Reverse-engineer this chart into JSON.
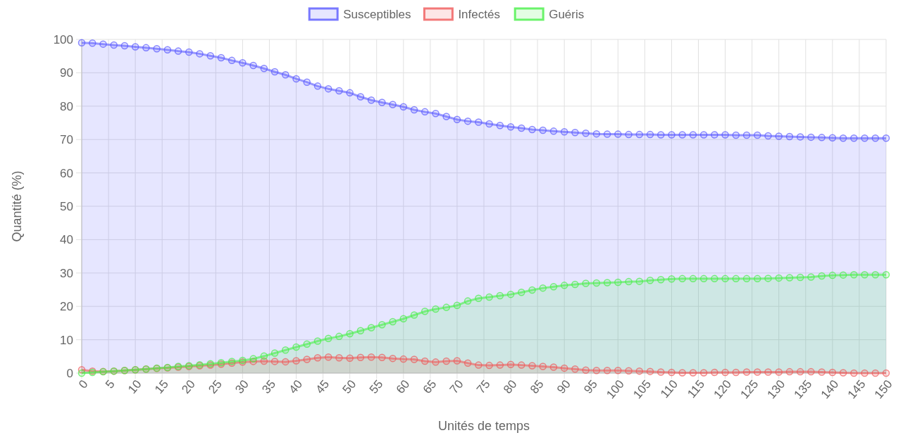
{
  "chart_data": {
    "type": "area",
    "xlabel": "Unités de temps",
    "ylabel": "Quantité (%)",
    "x": [
      0,
      2,
      4,
      6,
      8,
      10,
      12,
      14,
      16,
      18,
      20,
      22,
      24,
      26,
      28,
      30,
      32,
      34,
      36,
      38,
      40,
      42,
      44,
      46,
      48,
      50,
      52,
      54,
      56,
      58,
      60,
      62,
      64,
      66,
      68,
      70,
      72,
      74,
      76,
      78,
      80,
      82,
      84,
      86,
      88,
      90,
      92,
      94,
      96,
      98,
      100,
      102,
      104,
      106,
      108,
      110,
      112,
      114,
      116,
      118,
      120,
      122,
      124,
      126,
      128,
      130,
      132,
      134,
      136,
      138,
      140,
      142,
      144,
      146,
      148,
      150
    ],
    "xlim": [
      0,
      150
    ],
    "xticks": [
      0,
      5,
      10,
      15,
      20,
      25,
      30,
      35,
      40,
      45,
      50,
      55,
      60,
      65,
      70,
      75,
      80,
      85,
      90,
      95,
      100,
      105,
      110,
      115,
      120,
      125,
      130,
      135,
      140,
      145,
      150
    ],
    "ylim": [
      0,
      100
    ],
    "yticks": [
      0,
      10,
      20,
      30,
      40,
      50,
      60,
      70,
      80,
      90,
      100
    ],
    "grid": true,
    "legend": "top",
    "marker": "circle",
    "series": [
      {
        "name": "Susceptibles",
        "color": "#5a5aff",
        "values": [
          99,
          98.9,
          98.6,
          98.3,
          98.1,
          97.8,
          97.5,
          97.2,
          96.9,
          96.5,
          96.2,
          95.7,
          95.1,
          94.5,
          93.7,
          93,
          92.2,
          91.3,
          90.3,
          89.4,
          88.2,
          87.2,
          86,
          85.2,
          84.6,
          84,
          82.8,
          81.8,
          81.1,
          80.5,
          79.8,
          78.9,
          78.3,
          77.8,
          76.9,
          76,
          75.5,
          75.2,
          74.7,
          74.2,
          73.8,
          73.4,
          73,
          72.8,
          72.5,
          72.3,
          72.1,
          71.9,
          71.7,
          71.6,
          71.6,
          71.5,
          71.5,
          71.5,
          71.4,
          71.4,
          71.4,
          71.4,
          71.4,
          71.4,
          71.4,
          71.3,
          71.3,
          71.3,
          71.1,
          71,
          70.9,
          70.8,
          70.7,
          70.6,
          70.5,
          70.4,
          70.4,
          70.4,
          70.4,
          70.4
        ]
      },
      {
        "name": "Infectés",
        "color": "#f05a5a",
        "values": [
          1,
          0.6,
          0.5,
          0.6,
          0.8,
          1,
          1.2,
          1.4,
          1.6,
          1.8,
          2,
          2.2,
          2.4,
          2.7,
          3,
          3.3,
          3.5,
          3.6,
          3.5,
          3.4,
          3.7,
          4.1,
          4.6,
          4.8,
          4.6,
          4.5,
          4.7,
          4.8,
          4.7,
          4.4,
          4.2,
          4.1,
          3.6,
          3.3,
          3.6,
          3.7,
          3,
          2.4,
          2.3,
          2.4,
          2.6,
          2.4,
          2.2,
          2,
          1.8,
          1.5,
          1.2,
          0.9,
          0.8,
          0.8,
          0.8,
          0.7,
          0.6,
          0.5,
          0.3,
          0.2,
          0.1,
          0.1,
          0.1,
          0.2,
          0.2,
          0.2,
          0.3,
          0.3,
          0.3,
          0.3,
          0.4,
          0.4,
          0.4,
          0.3,
          0.2,
          0.1,
          0,
          0,
          0,
          0
        ]
      },
      {
        "name": "Guéris",
        "color": "#48f048",
        "values": [
          0,
          0.2,
          0.4,
          0.6,
          0.8,
          1,
          1.2,
          1.5,
          1.7,
          2,
          2.2,
          2.5,
          2.8,
          3.1,
          3.5,
          3.8,
          4.3,
          5.1,
          6,
          6.9,
          7.8,
          8.7,
          9.6,
          10.4,
          11,
          11.8,
          12.7,
          13.6,
          14.5,
          15.4,
          16.3,
          17.4,
          18.5,
          19.2,
          19.7,
          20.3,
          21.6,
          22.4,
          22.8,
          23.2,
          23.6,
          24.2,
          24.9,
          25.5,
          25.9,
          26.3,
          26.6,
          26.9,
          27,
          27.1,
          27.2,
          27.4,
          27.5,
          27.8,
          28,
          28.2,
          28.3,
          28.3,
          28.3,
          28.3,
          28.3,
          28.3,
          28.3,
          28.3,
          28.4,
          28.5,
          28.6,
          28.7,
          28.8,
          29.1,
          29.3,
          29.4,
          29.5,
          29.5,
          29.5,
          29.5
        ]
      }
    ]
  }
}
